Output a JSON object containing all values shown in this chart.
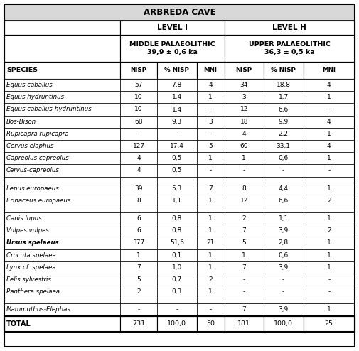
{
  "title": "ARBREDA CAVE",
  "level_i_label": "LEVEL I",
  "level_h_label": "LEVEL H",
  "level_i_sub": "MIDDLE PALAEOLITHIC\n39,9 ± 0,6 ka",
  "level_h_sub": "UPPER PALAEOLITHIC\n36,3 ± 0,5 ka",
  "col_headers": [
    "SPECIES",
    "NISP",
    "% NISP",
    "MNI",
    "NISP",
    "% NISP",
    "MNI"
  ],
  "rows": [
    [
      "Equus caballus",
      "57",
      "7,8",
      "4",
      "34",
      "18,8",
      "4"
    ],
    [
      "Equus hydruntinus",
      "10",
      "1,4",
      "1",
      "3",
      "1,7",
      "1"
    ],
    [
      "Equus caballus-hydruntinus",
      "10",
      "1,4",
      "-",
      "12",
      "6,6",
      "-"
    ],
    [
      "Bos-Bison",
      "68",
      "9,3",
      "3",
      "18",
      "9,9",
      "4"
    ],
    [
      "Rupicapra rupicapra",
      "-",
      "-",
      "-",
      "4",
      "2,2",
      "1"
    ],
    [
      "Cervus elaphus",
      "127",
      "17,4",
      "5",
      "60",
      "33,1",
      "4"
    ],
    [
      "Capreolus capreolus",
      "4",
      "0,5",
      "1",
      "1",
      "0,6",
      "1"
    ],
    [
      "Cervus-capreolus",
      "4",
      "0,5",
      "-",
      "-",
      "-",
      "-"
    ],
    [
      "",
      "",
      "",
      "",
      "",
      "",
      ""
    ],
    [
      "Lepus europaeus",
      "39",
      "5,3",
      "7",
      "8",
      "4,4",
      "1"
    ],
    [
      "Erinaceus europaeus",
      "8",
      "1,1",
      "1",
      "12",
      "6,6",
      "2"
    ],
    [
      "",
      "",
      "",
      "",
      "",
      "",
      ""
    ],
    [
      "Canis lupus",
      "6",
      "0,8",
      "1",
      "2",
      "1,1",
      "1"
    ],
    [
      "Vulpes vulpes",
      "6",
      "0,8",
      "1",
      "7",
      "3,9",
      "2"
    ],
    [
      "Ursus spelaeus",
      "377",
      "51,6",
      "21",
      "5",
      "2,8",
      "1"
    ],
    [
      "Crocuta spelaea",
      "1",
      "0,1",
      "1",
      "1",
      "0,6",
      "1"
    ],
    [
      "Lynx cf. spelaea",
      "7",
      "1,0",
      "1",
      "7",
      "3,9",
      "1"
    ],
    [
      "Felis sylvestris",
      "5",
      "0,7",
      "2",
      "-",
      "-",
      "-"
    ],
    [
      "Panthera spelaea",
      "2",
      "0,3",
      "1",
      "-",
      "-",
      "-"
    ],
    [
      "",
      "",
      "",
      "",
      "",
      "",
      ""
    ],
    [
      "Mammuthus-Elephas",
      "-",
      "-",
      "-",
      "7",
      "3,9",
      "1"
    ]
  ],
  "bold_italic_rows": [
    14
  ],
  "italic_rows": [
    0,
    1,
    2,
    3,
    4,
    5,
    6,
    7,
    9,
    10,
    12,
    13,
    15,
    16,
    17,
    18,
    20
  ],
  "total_row": [
    "TOTAL",
    "731",
    "100,0",
    "50",
    "181",
    "100,0",
    "25"
  ],
  "bg_header": "#d8d8d8",
  "bg_white": "#ffffff",
  "border_color": "#000000"
}
